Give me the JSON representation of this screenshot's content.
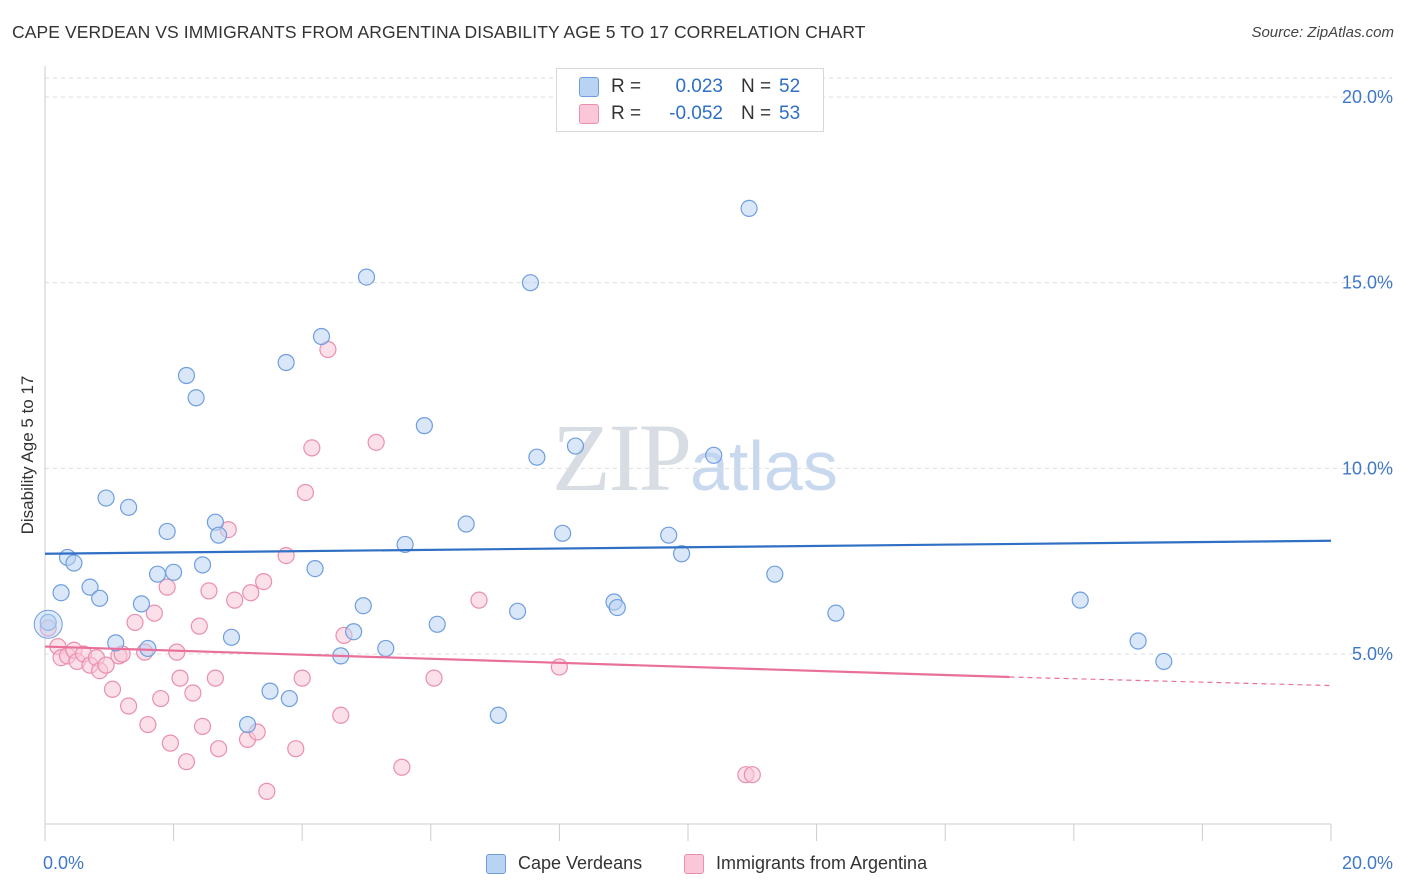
{
  "title": "CAPE VERDEAN VS IMMIGRANTS FROM ARGENTINA DISABILITY AGE 5 TO 17 CORRELATION CHART",
  "source": "Source: ZipAtlas.com",
  "watermark": {
    "zip": "ZIP",
    "atlas": "atlas"
  },
  "legend": {
    "rows": [
      {
        "r_label": "R =",
        "r_value": "0.023",
        "n_label": "N =",
        "n_value": "52",
        "color": "#b9d3f3",
        "border": "#6f9ee0"
      },
      {
        "r_label": "R =",
        "r_value": "-0.052",
        "n_label": "N =",
        "n_value": "53",
        "color": "#f9c7d7",
        "border": "#ea8fae"
      }
    ]
  },
  "colors": {
    "blue_fill": "#b9d3f3",
    "blue_stroke": "#6f9ee0",
    "blue_line": "#2f6fc4",
    "pink_fill": "#f9c7d7",
    "pink_stroke": "#ea8fae",
    "pink_line": "#e8709a",
    "tick_text": "#3f78c9",
    "grid": "#dddddd"
  },
  "chart_data": {
    "type": "scatter",
    "title": "CAPE VERDEAN VS IMMIGRANTS FROM ARGENTINA DISABILITY AGE 5 TO 17 CORRELATION CHART",
    "xlabel": "",
    "ylabel": "Disability Age 5 to 17",
    "xlim": [
      0,
      20
    ],
    "ylim": [
      0.5,
      20.5
    ],
    "x_tick_labels": [
      "0.0%",
      "20.0%"
    ],
    "y_ticks": [
      5,
      10,
      15,
      20
    ],
    "y_tick_labels": [
      "5.0%",
      "10.0%",
      "15.0%",
      "20.0%"
    ],
    "grid": true,
    "legend_position": "bottom",
    "series": [
      {
        "name": "Cape Verdeans",
        "color": "#6f9ee0",
        "trend": {
          "x": [
            0,
            20
          ],
          "y": [
            7.7,
            8.05
          ],
          "extrapolated_from": null
        },
        "points": [
          [
            0.05,
            5.85
          ],
          [
            0.25,
            6.65
          ],
          [
            0.35,
            7.6
          ],
          [
            0.45,
            7.45
          ],
          [
            0.7,
            6.8
          ],
          [
            0.85,
            6.5
          ],
          [
            0.95,
            9.2
          ],
          [
            1.1,
            5.3
          ],
          [
            1.3,
            8.95
          ],
          [
            1.5,
            6.35
          ],
          [
            1.6,
            5.15
          ],
          [
            1.75,
            7.15
          ],
          [
            1.9,
            8.3
          ],
          [
            2.0,
            7.2
          ],
          [
            2.2,
            12.5
          ],
          [
            2.35,
            11.9
          ],
          [
            2.45,
            7.4
          ],
          [
            2.65,
            8.55
          ],
          [
            2.7,
            8.2
          ],
          [
            2.9,
            5.45
          ],
          [
            3.15,
            3.1
          ],
          [
            3.5,
            4.0
          ],
          [
            3.8,
            3.8
          ],
          [
            3.75,
            12.85
          ],
          [
            4.2,
            7.3
          ],
          [
            4.3,
            13.55
          ],
          [
            4.6,
            4.95
          ],
          [
            4.8,
            5.6
          ],
          [
            4.95,
            6.3
          ],
          [
            5.0,
            15.15
          ],
          [
            5.3,
            5.15
          ],
          [
            5.6,
            7.95
          ],
          [
            5.9,
            11.15
          ],
          [
            6.1,
            5.8
          ],
          [
            6.55,
            8.5
          ],
          [
            7.05,
            3.35
          ],
          [
            7.35,
            6.15
          ],
          [
            7.55,
            15.0
          ],
          [
            7.65,
            10.3
          ],
          [
            8.05,
            8.25
          ],
          [
            8.25,
            10.6
          ],
          [
            8.85,
            6.4
          ],
          [
            8.9,
            6.25
          ],
          [
            9.7,
            8.2
          ],
          [
            9.9,
            7.7
          ],
          [
            10.4,
            10.35
          ],
          [
            10.95,
            17.0
          ],
          [
            11.35,
            7.15
          ],
          [
            12.3,
            6.1
          ],
          [
            16.1,
            6.45
          ],
          [
            17.0,
            5.35
          ],
          [
            17.4,
            4.8
          ]
        ]
      },
      {
        "name": "Immigrants from Argentina",
        "color": "#ea8fae",
        "trend": {
          "x": [
            0,
            15
          ],
          "y": [
            5.2,
            4.38
          ],
          "dashed_to": [
            20,
            4.15
          ]
        },
        "points": [
          [
            0.05,
            5.7
          ],
          [
            0.2,
            5.2
          ],
          [
            0.25,
            4.9
          ],
          [
            0.35,
            4.95
          ],
          [
            0.45,
            5.1
          ],
          [
            0.5,
            4.8
          ],
          [
            0.6,
            5.0
          ],
          [
            0.7,
            4.7
          ],
          [
            0.8,
            4.9
          ],
          [
            0.85,
            4.55
          ],
          [
            0.95,
            4.7
          ],
          [
            1.05,
            4.05
          ],
          [
            1.15,
            4.95
          ],
          [
            1.2,
            5.0
          ],
          [
            1.3,
            3.6
          ],
          [
            1.4,
            5.85
          ],
          [
            1.55,
            5.05
          ],
          [
            1.6,
            3.1
          ],
          [
            1.7,
            6.1
          ],
          [
            1.8,
            3.8
          ],
          [
            1.9,
            6.8
          ],
          [
            1.95,
            2.6
          ],
          [
            2.05,
            5.05
          ],
          [
            2.1,
            4.35
          ],
          [
            2.2,
            2.1
          ],
          [
            2.3,
            3.95
          ],
          [
            2.4,
            5.75
          ],
          [
            2.45,
            3.05
          ],
          [
            2.55,
            6.7
          ],
          [
            2.65,
            4.35
          ],
          [
            2.7,
            2.45
          ],
          [
            2.85,
            8.35
          ],
          [
            2.95,
            6.45
          ],
          [
            3.15,
            2.7
          ],
          [
            3.2,
            6.65
          ],
          [
            3.3,
            2.9
          ],
          [
            3.4,
            6.95
          ],
          [
            3.45,
            1.3
          ],
          [
            3.75,
            7.65
          ],
          [
            3.9,
            2.45
          ],
          [
            4.0,
            4.35
          ],
          [
            4.05,
            9.35
          ],
          [
            4.15,
            10.55
          ],
          [
            4.4,
            13.2
          ],
          [
            4.6,
            3.35
          ],
          [
            4.65,
            5.5
          ],
          [
            5.15,
            10.7
          ],
          [
            5.55,
            1.95
          ],
          [
            6.05,
            4.35
          ],
          [
            6.75,
            6.45
          ],
          [
            8.0,
            4.65
          ],
          [
            10.9,
            1.75
          ],
          [
            11.0,
            1.75
          ]
        ]
      }
    ]
  }
}
